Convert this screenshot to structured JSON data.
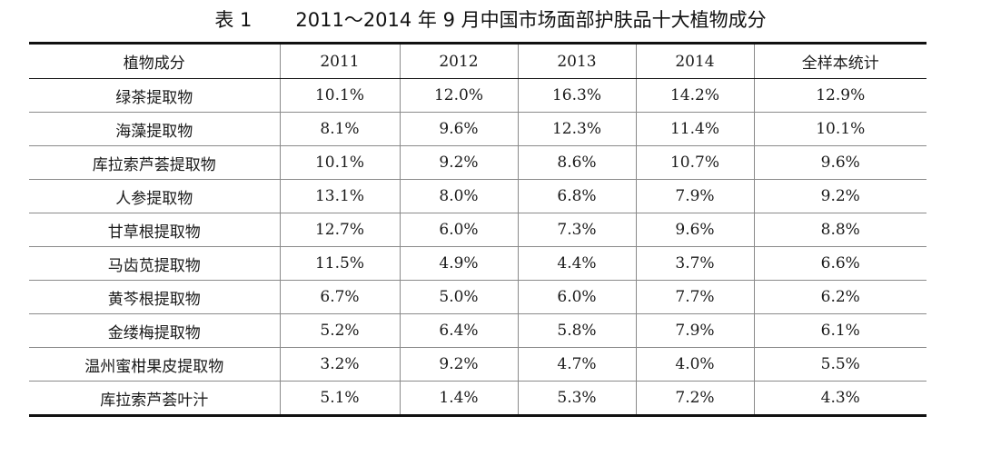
{
  "caption": {
    "label": "表 1",
    "text": "2011～2014 年 9 月中国市场面部护肤品十大植物成分"
  },
  "table": {
    "headers": [
      "植物成分",
      "2011",
      "2012",
      "2013",
      "2014",
      "全样本统计"
    ],
    "rows": [
      [
        "绿茶提取物",
        "10.1%",
        "12.0%",
        "16.3%",
        "14.2%",
        "12.9%"
      ],
      [
        "海藻提取物",
        "8.1%",
        "9.6%",
        "12.3%",
        "11.4%",
        "10.1%"
      ],
      [
        "库拉索芦荟提取物",
        "10.1%",
        "9.2%",
        "8.6%",
        "10.7%",
        "9.6%"
      ],
      [
        "人参提取物",
        "13.1%",
        "8.0%",
        "6.8%",
        "7.9%",
        "9.2%"
      ],
      [
        "甘草根提取物",
        "12.7%",
        "6.0%",
        "7.3%",
        "9.6%",
        "8.8%"
      ],
      [
        "马齿苋提取物",
        "11.5%",
        "4.9%",
        "4.4%",
        "3.7%",
        "6.6%"
      ],
      [
        "黄芩根提取物",
        "6.7%",
        "5.0%",
        "6.0%",
        "7.7%",
        "6.2%"
      ],
      [
        "金缕梅提取物",
        "5.2%",
        "6.4%",
        "5.8%",
        "7.9%",
        "6.1%"
      ],
      [
        "温州蜜柑果皮提取物",
        "3.2%",
        "9.2%",
        "4.7%",
        "4.0%",
        "5.5%"
      ],
      [
        "库拉索芦荟叶汁",
        "5.1%",
        "1.4%",
        "5.3%",
        "7.2%",
        "4.3%"
      ]
    ]
  }
}
